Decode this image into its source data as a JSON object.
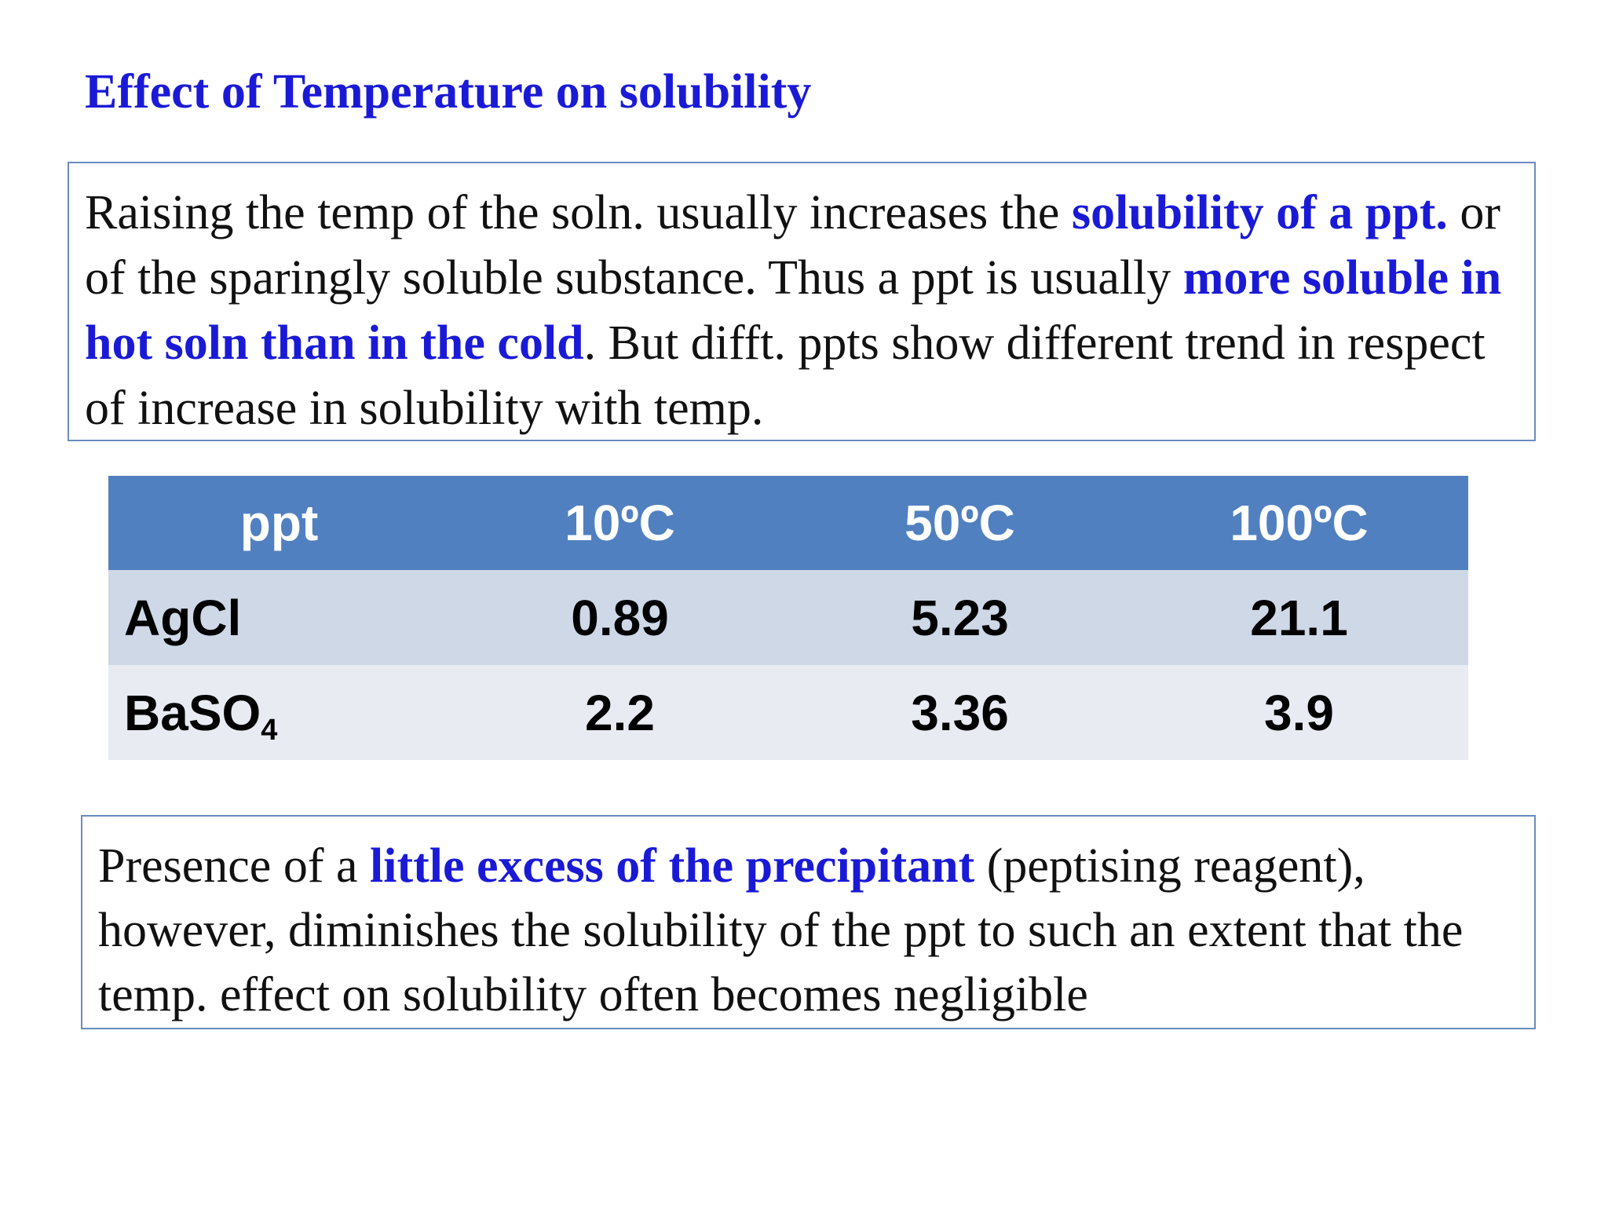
{
  "title": "Effect of Temperature on solubility",
  "para1": {
    "t1": "Raising the temp of the soln. usually increases the ",
    "h1": "solubility of a ppt.",
    "t2": " or  of the sparingly soluble substance. Thus a ppt is usually ",
    "h2": "more soluble in hot soln than in the cold",
    "t3": ". But difft. ppts show different  trend in respect of increase in solubility with temp."
  },
  "table": {
    "headers": [
      "ppt",
      "10ºC",
      "50ºC",
      "100ºC"
    ],
    "rows": [
      {
        "name": "AgCl",
        "name_sub": "",
        "values": [
          "0.89",
          "5.23",
          "21.1"
        ]
      },
      {
        "name": "BaSO",
        "name_sub": "4",
        "values": [
          "2.2",
          "3.36",
          "3.9"
        ]
      }
    ]
  },
  "para2": {
    "t1": "Presence of a ",
    "h1": "little excess of the precipitant",
    "t2": " (peptising reagent), however, diminishes the solubility of the ppt to such an extent that the temp. effect on solubility often becomes negligible"
  },
  "colors": {
    "highlight": "#1a1ad6",
    "table_header": "#5180c0",
    "row_odd": "#cfd8e7",
    "row_even": "#e9ebf3",
    "box_border": "#6a8cbf"
  }
}
